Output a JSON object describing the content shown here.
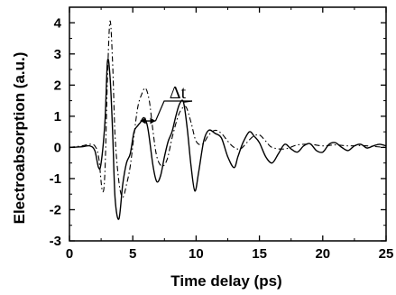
{
  "chart_data": {
    "type": "line",
    "title": "",
    "xlabel": "Time delay (ps)",
    "ylabel": "Electroabsorption (a.u.)",
    "xlim": [
      0,
      25
    ],
    "ylim": [
      -3,
      4.5
    ],
    "xticks": [
      0,
      5,
      10,
      15,
      20,
      25
    ],
    "yticks": [
      -3,
      -2,
      -1,
      0,
      1,
      2,
      3,
      4
    ],
    "grid": false,
    "legend": "none",
    "annotation": {
      "text": "Δt",
      "arrow_from": [
        5.6,
        0.85
      ],
      "arrow_to": [
        6.8,
        0.85
      ],
      "pointer_to": [
        9.0,
        1.45
      ]
    },
    "series": [
      {
        "style": "solid",
        "color": "#000000",
        "x": [
          0,
          1.0,
          1.6,
          2.0,
          2.3,
          2.5,
          2.8,
          3.0,
          3.2,
          3.4,
          3.6,
          3.9,
          4.2,
          4.5,
          4.8,
          5.1,
          5.4,
          5.6,
          5.9,
          6.2,
          6.6,
          6.9,
          7.2,
          7.5,
          7.8,
          8.1,
          8.4,
          8.7,
          9.0,
          9.3,
          9.6,
          9.9,
          10.2,
          10.6,
          11.0,
          11.5,
          12.0,
          12.5,
          13.0,
          13.3,
          13.7,
          14.2,
          14.6,
          15.0,
          15.5,
          16.0,
          16.5,
          17.0,
          17.5,
          18.0,
          18.5,
          19.0,
          19.5,
          20.0,
          20.5,
          21.0,
          21.5,
          22.0,
          22.5,
          23.0,
          23.5,
          24.0,
          24.5,
          25.0
        ],
        "y": [
          0.0,
          0.02,
          0.05,
          -0.1,
          -0.65,
          -0.5,
          0.8,
          2.75,
          2.3,
          0.6,
          -1.6,
          -2.3,
          -1.2,
          -0.5,
          -0.2,
          0.5,
          0.7,
          0.8,
          0.95,
          0.6,
          -0.6,
          -1.1,
          -0.9,
          -0.3,
          0.2,
          0.5,
          1.0,
          1.4,
          1.45,
          0.6,
          -0.6,
          -1.4,
          -0.8,
          0.2,
          0.55,
          0.45,
          0.3,
          -0.3,
          -0.65,
          -0.3,
          0.15,
          0.5,
          0.35,
          0.15,
          -0.3,
          -0.5,
          -0.2,
          0.1,
          -0.05,
          -0.15,
          0.05,
          0.12,
          -0.1,
          -0.15,
          0.1,
          0.15,
          0.0,
          -0.1,
          0.05,
          0.1,
          -0.02,
          0.05,
          0.1,
          0.05
        ]
      },
      {
        "style": "dashdot",
        "color": "#000000",
        "x": [
          0,
          1.0,
          1.6,
          2.0,
          2.3,
          2.6,
          2.8,
          3.0,
          3.2,
          3.4,
          3.6,
          3.9,
          4.2,
          4.5,
          4.8,
          5.1,
          5.4,
          5.7,
          6.0,
          6.3,
          6.6,
          6.9,
          7.3,
          7.7,
          8.1,
          8.5,
          8.8,
          9.2,
          9.6,
          10.0,
          10.5,
          11.0,
          11.5,
          12.0,
          12.5,
          13.0,
          13.5,
          14.0,
          14.5,
          15.0,
          15.5,
          16.0,
          17.0,
          18.0,
          19.0,
          20.0,
          21.0,
          22.0,
          23.0,
          24.0,
          25.0
        ],
        "y": [
          0.0,
          0.05,
          0.1,
          0.05,
          -0.3,
          -1.4,
          -0.8,
          2.2,
          4.05,
          2.8,
          0.4,
          -1.1,
          -1.6,
          -1.2,
          -0.6,
          0.4,
          1.3,
          1.7,
          1.9,
          1.5,
          0.5,
          -0.3,
          -0.6,
          -0.4,
          0.3,
          0.9,
          1.2,
          1.3,
          0.8,
          0.2,
          0.1,
          0.4,
          0.55,
          0.45,
          0.2,
          0.0,
          -0.05,
          0.15,
          0.35,
          0.4,
          0.2,
          0.0,
          -0.05,
          0.08,
          0.1,
          0.05,
          0.08,
          0.05,
          0.06,
          0.03,
          0.0
        ]
      }
    ]
  }
}
